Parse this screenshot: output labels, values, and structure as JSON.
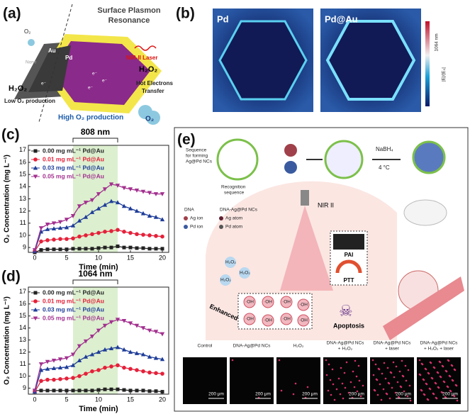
{
  "panels": {
    "a": {
      "label": "(a)",
      "title_lines": [
        "Surface Plasmon",
        "Resonance"
      ],
      "o2_top": "O₂",
      "au": "Au",
      "pd": "Pd",
      "none": "None",
      "electron": "e⁻",
      "laser": "NIR-II Laser",
      "h2o2_right": "H₂O₂",
      "hot_lines": [
        "Hot Electrons",
        "Transfer"
      ],
      "h2o2_left": "H₂O₂",
      "low": "Low O₂ production",
      "high": "High O₂ production",
      "o2_bottom": "O₂"
    },
    "b": {
      "label": "(b)",
      "left": "Pd",
      "right": "Pd@Au",
      "wavelength": "1064 nm",
      "scale": "|E|/|E₀|"
    },
    "e": {
      "label": "(e)",
      "sequence_lines": [
        "Sequence",
        "for forming",
        "Ag@Pd NCs"
      ],
      "recognition_lines": [
        "Recognition",
        "sequence"
      ],
      "reductant": "NaBH₄",
      "temperature": "4 °C",
      "laser": "NIR II",
      "legend": [
        "DNA",
        "DNA-Ag@Pd NCs",
        "Ag ion",
        "Ag atom",
        "Pd ion",
        "Pd atom"
      ],
      "h2o2": "H₂O₂",
      "pai": "PAI",
      "ptt": "PTT",
      "nct": "Enhanced NCT",
      "oh": "·OH",
      "apoptosis": "Apoptosis",
      "groups": [
        [
          "Control"
        ],
        [
          "DNA-Ag@Pd  NCs"
        ],
        [
          "H₂O₂"
        ],
        [
          "DNA-Ag@Pd  NCs",
          "+ H₂O₂"
        ],
        [
          "DNA-Ag@Pd NCs",
          "+ laser"
        ],
        [
          "DNA-Ag@Pd NCs",
          "+ H₂O₂ + laser"
        ]
      ],
      "scale_bar": "200 μm"
    }
  },
  "chart_data": [
    {
      "type": "line",
      "label": "(c)",
      "annotation": "808 nm",
      "highlight": [
        6,
        13
      ],
      "x_label": "Time (min)",
      "y_label": "O₂ Concentration (mg L⁻¹)",
      "x": [
        0,
        1,
        2,
        3,
        4,
        5,
        6,
        7,
        8,
        9,
        10,
        11,
        12,
        13,
        14,
        15,
        16,
        17,
        18,
        19,
        20
      ],
      "xlim": [
        -1,
        21
      ],
      "xticks": [
        0,
        5,
        10,
        15,
        20
      ],
      "ylim": [
        8.6,
        17.4
      ],
      "yticks": [
        9,
        10,
        11,
        12,
        13,
        14,
        15,
        16,
        17
      ],
      "series": [
        {
          "name": "0.00 mg mL⁻¹ Pd@Au",
          "color": "#222222",
          "marker": "square",
          "values": [
            8.6,
            8.8,
            8.85,
            8.85,
            8.85,
            8.85,
            8.9,
            8.9,
            8.9,
            8.9,
            8.95,
            9.0,
            9.0,
            9.1,
            9.0,
            9.0,
            8.95,
            8.95,
            8.9,
            8.9,
            8.9
          ]
        },
        {
          "name": "0.01 mg mL⁻¹ Pd@Au",
          "color": "#e5213a",
          "marker": "circle",
          "values": [
            8.7,
            9.5,
            9.6,
            9.65,
            9.7,
            9.7,
            9.75,
            9.9,
            10.0,
            10.1,
            10.2,
            10.3,
            10.35,
            10.45,
            10.3,
            10.2,
            10.1,
            10.05,
            10.0,
            9.95,
            9.9
          ]
        },
        {
          "name": "0.03 mg mL⁻¹ Pd@Au",
          "color": "#1f3d99",
          "marker": "triangle-up",
          "values": [
            8.7,
            10.3,
            10.5,
            10.55,
            10.6,
            10.65,
            10.8,
            11.2,
            11.5,
            11.9,
            12.2,
            12.5,
            12.8,
            12.7,
            12.4,
            12.2,
            12.0,
            11.8,
            11.6,
            11.5,
            11.3
          ]
        },
        {
          "name": "0.05 mg mL⁻¹ Pd@Au",
          "color": "#a3308f",
          "marker": "triangle-down",
          "values": [
            8.8,
            10.6,
            10.9,
            11.0,
            11.1,
            11.3,
            11.6,
            12.4,
            12.7,
            12.9,
            13.4,
            13.8,
            14.2,
            14.1,
            13.9,
            13.8,
            13.7,
            13.6,
            13.5,
            13.4,
            13.4
          ]
        }
      ]
    },
    {
      "type": "line",
      "label": "(d)",
      "annotation": "1064 nm",
      "highlight": [
        6,
        13
      ],
      "x_label": "Time (min)",
      "y_label": "O₂ Concentration (mg L⁻¹)",
      "x": [
        0,
        1,
        2,
        3,
        4,
        5,
        6,
        7,
        8,
        9,
        10,
        11,
        12,
        13,
        14,
        15,
        16,
        17,
        18,
        19,
        20
      ],
      "xlim": [
        -1,
        21
      ],
      "xticks": [
        0,
        5,
        10,
        15,
        20
      ],
      "ylim": [
        8.5,
        17.4
      ],
      "yticks": [
        9,
        10,
        11,
        12,
        13,
        14,
        15,
        16,
        17
      ],
      "series": [
        {
          "name": "0.00 mg mL⁻¹ Pd@Au",
          "color": "#222222",
          "marker": "square",
          "values": [
            8.8,
            8.8,
            8.8,
            8.8,
            8.8,
            8.8,
            8.8,
            8.8,
            8.8,
            8.8,
            8.85,
            8.9,
            8.9,
            8.9,
            8.85,
            8.8,
            8.8,
            8.8,
            8.75,
            8.75,
            8.7
          ]
        },
        {
          "name": "0.01 mg mL⁻¹ Pd@Au",
          "color": "#e5213a",
          "marker": "circle",
          "values": [
            8.7,
            9.6,
            9.7,
            9.7,
            9.75,
            9.8,
            9.85,
            10.0,
            10.2,
            10.4,
            10.5,
            10.7,
            10.8,
            10.9,
            10.7,
            10.6,
            10.5,
            10.4,
            10.3,
            10.25,
            10.2
          ]
        },
        {
          "name": "0.03 mg mL⁻¹ Pd@Au",
          "color": "#1f3d99",
          "marker": "triangle-up",
          "values": [
            8.7,
            10.5,
            10.6,
            10.65,
            10.7,
            10.75,
            10.9,
            11.3,
            11.6,
            11.8,
            12.0,
            12.2,
            12.3,
            12.4,
            12.2,
            12.0,
            11.9,
            11.8,
            11.6,
            11.5,
            11.4
          ]
        },
        {
          "name": "0.05 mg mL⁻¹ Pd@Au",
          "color": "#a3308f",
          "marker": "triangle-down",
          "values": [
            8.8,
            11.0,
            11.2,
            11.3,
            11.4,
            11.5,
            11.8,
            12.5,
            12.9,
            13.3,
            13.8,
            14.2,
            14.5,
            14.7,
            14.6,
            14.4,
            14.2,
            14.0,
            13.8,
            13.7,
            13.5
          ]
        }
      ]
    }
  ]
}
